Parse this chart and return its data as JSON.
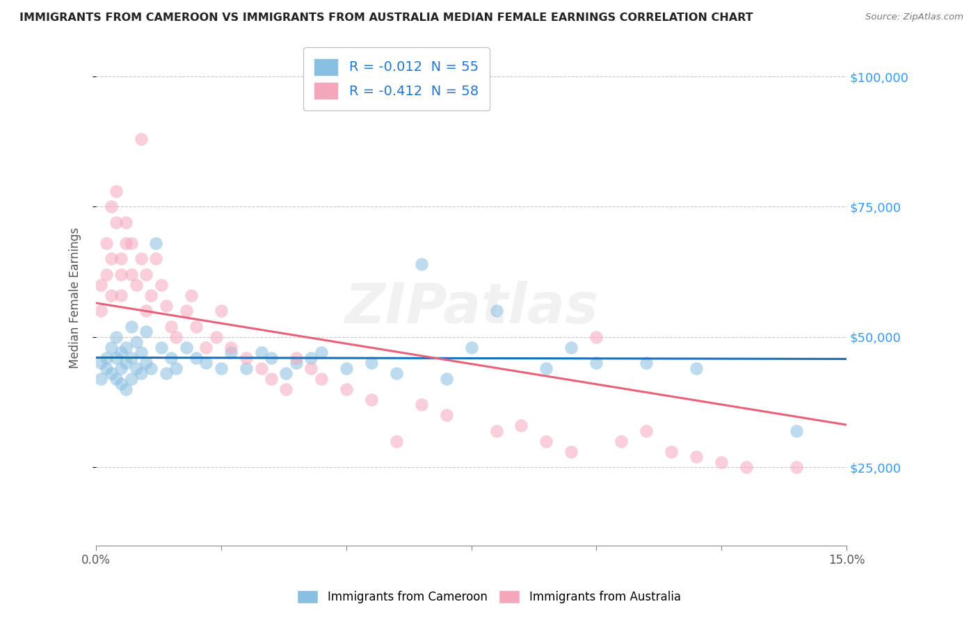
{
  "title": "IMMIGRANTS FROM CAMEROON VS IMMIGRANTS FROM AUSTRALIA MEDIAN FEMALE EARNINGS CORRELATION CHART",
  "source_text": "Source: ZipAtlas.com",
  "ylabel": "Median Female Earnings",
  "xlim": [
    0.0,
    0.15
  ],
  "ylim": [
    10000,
    105000
  ],
  "xticks": [
    0.0,
    0.025,
    0.05,
    0.075,
    0.1,
    0.125,
    0.15
  ],
  "xtick_labels_show": [
    "0.0%",
    "",
    "",
    "",
    "",
    "",
    "15.0%"
  ],
  "yticks": [
    25000,
    50000,
    75000,
    100000
  ],
  "ytick_labels": [
    "$25,000",
    "$50,000",
    "$75,000",
    "$100,000"
  ],
  "blue_color": "#89bfe0",
  "pink_color": "#f4a7bb",
  "blue_line_color": "#1a6fba",
  "pink_line_color": "#e8607a",
  "blue_R": -0.012,
  "blue_N": 55,
  "pink_R": -0.412,
  "pink_N": 58,
  "watermark": "ZIPatlas",
  "blue_series_label": "Immigrants from Cameroon",
  "pink_series_label": "Immigrants from Australia",
  "blue_line_y0": 47500,
  "blue_line_y1": 47000,
  "pink_line_y0": 62000,
  "pink_line_y1": 32000,
  "blue_scatter_x": [
    0.001,
    0.001,
    0.002,
    0.002,
    0.003,
    0.003,
    0.004,
    0.004,
    0.004,
    0.005,
    0.005,
    0.005,
    0.006,
    0.006,
    0.006,
    0.007,
    0.007,
    0.007,
    0.008,
    0.008,
    0.009,
    0.009,
    0.01,
    0.01,
    0.011,
    0.012,
    0.013,
    0.014,
    0.015,
    0.016,
    0.018,
    0.02,
    0.022,
    0.025,
    0.027,
    0.03,
    0.033,
    0.035,
    0.038,
    0.04,
    0.043,
    0.045,
    0.05,
    0.055,
    0.06,
    0.065,
    0.07,
    0.075,
    0.08,
    0.09,
    0.095,
    0.1,
    0.11,
    0.12,
    0.14
  ],
  "blue_scatter_y": [
    45000,
    42000,
    44000,
    46000,
    43000,
    48000,
    42000,
    46000,
    50000,
    41000,
    44000,
    47000,
    40000,
    45000,
    48000,
    42000,
    46000,
    52000,
    44000,
    49000,
    43000,
    47000,
    45000,
    51000,
    44000,
    68000,
    48000,
    43000,
    46000,
    44000,
    48000,
    46000,
    45000,
    44000,
    47000,
    44000,
    47000,
    46000,
    43000,
    45000,
    46000,
    47000,
    44000,
    45000,
    43000,
    64000,
    42000,
    48000,
    55000,
    44000,
    48000,
    45000,
    45000,
    44000,
    32000
  ],
  "pink_scatter_x": [
    0.001,
    0.001,
    0.002,
    0.002,
    0.003,
    0.003,
    0.003,
    0.004,
    0.004,
    0.005,
    0.005,
    0.005,
    0.006,
    0.006,
    0.007,
    0.007,
    0.008,
    0.009,
    0.009,
    0.01,
    0.01,
    0.011,
    0.012,
    0.013,
    0.014,
    0.015,
    0.016,
    0.018,
    0.019,
    0.02,
    0.022,
    0.024,
    0.025,
    0.027,
    0.03,
    0.033,
    0.035,
    0.038,
    0.04,
    0.043,
    0.045,
    0.05,
    0.055,
    0.06,
    0.065,
    0.07,
    0.08,
    0.085,
    0.09,
    0.095,
    0.1,
    0.105,
    0.11,
    0.115,
    0.12,
    0.125,
    0.13,
    0.14
  ],
  "pink_scatter_y": [
    60000,
    55000,
    62000,
    68000,
    75000,
    65000,
    58000,
    72000,
    78000,
    65000,
    58000,
    62000,
    68000,
    72000,
    62000,
    68000,
    60000,
    88000,
    65000,
    55000,
    62000,
    58000,
    65000,
    60000,
    56000,
    52000,
    50000,
    55000,
    58000,
    52000,
    48000,
    50000,
    55000,
    48000,
    46000,
    44000,
    42000,
    40000,
    46000,
    44000,
    42000,
    40000,
    38000,
    30000,
    37000,
    35000,
    32000,
    33000,
    30000,
    28000,
    50000,
    30000,
    32000,
    28000,
    27000,
    26000,
    25000,
    25000
  ]
}
